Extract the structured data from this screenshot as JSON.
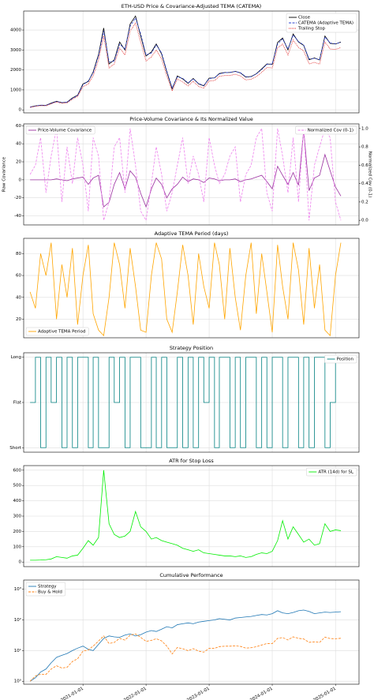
{
  "shared_x": {
    "x": [
      "2020-03-01",
      "2020-04-01",
      "2020-05-01",
      "2020-06-01",
      "2020-07-01",
      "2020-08-01",
      "2020-09-01",
      "2020-10-01",
      "2020-11-01",
      "2020-12-01",
      "2021-01-01",
      "2021-02-01",
      "2021-03-01",
      "2021-04-01",
      "2021-05-01",
      "2021-06-01",
      "2021-07-01",
      "2021-08-01",
      "2021-09-01",
      "2021-10-01",
      "2021-11-01",
      "2021-12-01",
      "2022-01-01",
      "2022-02-01",
      "2022-03-01",
      "2022-04-01",
      "2022-05-01",
      "2022-06-01",
      "2022-07-01",
      "2022-08-01",
      "2022-09-01",
      "2022-10-01",
      "2022-11-01",
      "2022-12-01",
      "2023-01-01",
      "2023-02-01",
      "2023-03-01",
      "2023-04-01",
      "2023-05-01",
      "2023-06-01",
      "2023-07-01",
      "2023-08-01",
      "2023-09-01",
      "2023-10-01",
      "2023-11-01",
      "2023-12-01",
      "2024-01-01",
      "2024-02-01",
      "2024-03-01",
      "2024-04-01",
      "2024-05-01",
      "2024-06-01",
      "2024-07-01",
      "2024-08-01",
      "2024-09-01",
      "2024-10-01",
      "2024-11-01",
      "2024-12-01",
      "2025-01-01",
      "2025-02-01"
    ],
    "xlim": [
      "2020-01-24",
      "2025-05-17"
    ],
    "xticks": [
      "2021-01-01",
      "2022-01-01",
      "2023-01-01",
      "2024-01-01",
      "2025-01-01"
    ]
  },
  "chart_data": [
    {
      "type": "line",
      "title": "ETH-USD Price & Covariance-Adjusted TEMA (CATEMA)",
      "ylim": [
        -150,
        4950
      ],
      "yticks": [
        0,
        1000,
        2000,
        3000,
        4000
      ],
      "grid": true,
      "legend": "upper right",
      "series": [
        {
          "name": "Close",
          "color": "#000000",
          "dash": "solid",
          "values": [
            135,
            200,
            230,
            225,
            340,
            430,
            360,
            385,
            600,
            735,
            1300,
            1420,
            1900,
            2770,
            4100,
            2300,
            2500,
            3400,
            3000,
            4300,
            4700,
            3700,
            2700,
            2900,
            3300,
            2800,
            1900,
            1050,
            1700,
            1550,
            1330,
            1570,
            1300,
            1200,
            1590,
            1600,
            1820,
            1870,
            1870,
            1930,
            1850,
            1640,
            1670,
            1810,
            2050,
            2300,
            2280,
            3380,
            3600,
            3000,
            3800,
            3400,
            3230,
            2510,
            2600,
            2500,
            3700,
            3330,
            3300,
            3400
          ]
        },
        {
          "name": "CATEMA (Adaptive TEMA)",
          "color": "#2a3fd0",
          "dash": "dashed",
          "values": [
            140,
            190,
            235,
            230,
            320,
            420,
            370,
            380,
            570,
            720,
            1250,
            1450,
            1850,
            2700,
            3950,
            2400,
            2450,
            3300,
            3050,
            4200,
            4600,
            3800,
            2750,
            2850,
            3250,
            2850,
            1950,
            1100,
            1650,
            1580,
            1350,
            1550,
            1320,
            1220,
            1560,
            1610,
            1800,
            1860,
            1880,
            1920,
            1860,
            1660,
            1660,
            1800,
            2020,
            2280,
            2300,
            3300,
            3550,
            3050,
            3750,
            3420,
            3250,
            2550,
            2580,
            2520,
            3650,
            3350,
            3310,
            3380
          ]
        },
        {
          "name": "Trailing Stop",
          "color": "#e02020",
          "dash": "dotted",
          "values": [
            120,
            175,
            210,
            205,
            300,
            390,
            330,
            350,
            530,
            670,
            1150,
            1300,
            1700,
            2500,
            3700,
            2100,
            2300,
            3100,
            2750,
            3950,
            4350,
            3400,
            2450,
            2650,
            3000,
            2550,
            1700,
            950,
            1550,
            1400,
            1200,
            1430,
            1180,
            1080,
            1450,
            1470,
            1680,
            1720,
            1720,
            1780,
            1700,
            1500,
            1530,
            1660,
            1880,
            2120,
            2100,
            3100,
            3300,
            2750,
            3500,
            3120,
            2960,
            2300,
            2380,
            2290,
            3400,
            3050,
            3030,
            3120
          ]
        }
      ]
    },
    {
      "type": "line",
      "title": "Price-Volume Covariance & Its Normalized Value",
      "ylabel": "Raw Covariance",
      "y2label": "Normalized Cov (0-1)",
      "ylim": [
        -50,
        62
      ],
      "yticks": [
        -40,
        -20,
        0,
        20,
        40,
        60
      ],
      "y2lim": [
        -0.05,
        1.05
      ],
      "y2ticks": [
        {
          "value": 0,
          "label": "0.0"
        },
        0.2,
        0.4,
        0.6,
        0.8,
        {
          "value": 1,
          "label": "1.0"
        }
      ],
      "grid": true,
      "series": [
        {
          "name": "Price-Volume Covariance",
          "color": "#9b30a0",
          "dash": "solid",
          "legend": "upper left",
          "values": [
            0,
            0,
            0,
            0,
            0,
            1,
            0,
            -1,
            1,
            2,
            3,
            -5,
            2,
            5,
            -30,
            -25,
            -5,
            8,
            -10,
            10,
            3,
            -15,
            -30,
            -10,
            2,
            -5,
            -20,
            -10,
            -5,
            3,
            -2,
            1,
            0,
            -3,
            2,
            1,
            -1,
            0,
            0,
            1,
            -2,
            0,
            1,
            3,
            5,
            -2,
            -10,
            15,
            5,
            -5,
            8,
            -6,
            55,
            -12,
            2,
            5,
            28,
            10,
            -8,
            -18
          ]
        },
        {
          "name": "Normalized Cov (0-1)",
          "color": "#ee82ee",
          "dash": "dashed",
          "axis": "y2",
          "legend": "upper right",
          "values": [
            0.5,
            0.6,
            0.9,
            0.3,
            0.7,
            1.0,
            0.2,
            0.8,
            0.4,
            0.9,
            0.6,
            0.1,
            0.9,
            0.7,
            0.0,
            0.2,
            0.8,
            0.9,
            0.3,
            1.0,
            0.6,
            0.1,
            0.0,
            0.4,
            0.8,
            0.5,
            0.1,
            0.3,
            0.6,
            0.9,
            0.4,
            0.7,
            0.5,
            0.2,
            0.9,
            0.6,
            0.4,
            0.5,
            0.7,
            0.8,
            0.2,
            0.5,
            0.6,
            0.9,
            1.0,
            0.3,
            0.1,
            1.0,
            0.7,
            0.3,
            0.9,
            0.2,
            1.0,
            0.0,
            0.6,
            0.8,
            1.0,
            0.9,
            0.2,
            0.0
          ]
        }
      ]
    },
    {
      "type": "line",
      "title": "Adaptive TEMA Period (days)",
      "ylim": [
        3,
        94
      ],
      "yticks": [
        20,
        40,
        60,
        80
      ],
      "grid": true,
      "legend": "lower left",
      "series": [
        {
          "name": "Adaptive TEMA Period",
          "color": "#ffa500",
          "dash": "solid",
          "values": [
            45,
            30,
            80,
            60,
            90,
            20,
            70,
            40,
            85,
            15,
            60,
            88,
            25,
            10,
            5,
            40,
            90,
            70,
            30,
            85,
            50,
            10,
            8,
            60,
            90,
            75,
            20,
            8,
            45,
            88,
            60,
            15,
            80,
            50,
            30,
            90,
            70,
            20,
            85,
            40,
            10,
            60,
            90,
            25,
            80,
            45,
            8,
            88,
            50,
            20,
            90,
            65,
            15,
            85,
            30,
            70,
            10,
            5,
            60,
            90
          ]
        }
      ]
    },
    {
      "type": "step",
      "title": "Strategy Position",
      "ylim": [
        -1.1,
        1.1
      ],
      "yticks": [
        {
          "value": -1,
          "label": "Short"
        },
        {
          "value": 0,
          "label": "Flat"
        },
        {
          "value": 1,
          "label": "Long"
        }
      ],
      "grid": true,
      "legend": "upper right",
      "series": [
        {
          "name": "Position",
          "color": "#008080",
          "dash": "solid",
          "values": [
            0,
            1,
            -1,
            1,
            0,
            1,
            -1,
            1,
            -1,
            1,
            1,
            -1,
            1,
            -1,
            -1,
            1,
            0,
            1,
            -1,
            1,
            1,
            -1,
            -1,
            1,
            -1,
            1,
            -1,
            -1,
            1,
            -1,
            1,
            -1,
            1,
            0,
            1,
            -1,
            1,
            1,
            -1,
            1,
            -1,
            1,
            1,
            -1,
            1,
            -1,
            1,
            1,
            -1,
            1,
            1,
            -1,
            1,
            -1,
            1,
            1,
            -1,
            0,
            1,
            1
          ]
        }
      ]
    },
    {
      "type": "line",
      "title": "ATR for Stop Loss",
      "ylim": [
        -30,
        630
      ],
      "yticks": [
        0,
        100,
        200,
        300,
        400,
        500,
        600
      ],
      "grid": true,
      "legend": "upper right",
      "series": [
        {
          "name": "ATR (14d) for SL",
          "color": "#00ee00",
          "dash": "solid",
          "values": [
            12,
            12,
            13,
            15,
            20,
            35,
            30,
            25,
            40,
            45,
            90,
            140,
            110,
            160,
            600,
            250,
            180,
            160,
            170,
            200,
            330,
            230,
            200,
            150,
            160,
            140,
            130,
            120,
            110,
            90,
            80,
            70,
            80,
            60,
            55,
            50,
            45,
            40,
            40,
            35,
            40,
            30,
            35,
            50,
            60,
            55,
            70,
            140,
            270,
            150,
            230,
            180,
            130,
            150,
            110,
            120,
            250,
            200,
            210,
            205
          ]
        }
      ]
    },
    {
      "type": "line",
      "title": "Cumulative Performance",
      "log_y": true,
      "ylim": [
        0.8,
        2000
      ],
      "yticks": [
        {
          "value": 1,
          "label": "10⁰"
        },
        {
          "value": 10,
          "label": "10¹"
        },
        {
          "value": 100,
          "label": "10²"
        },
        {
          "value": 1000,
          "label": "10³"
        }
      ],
      "grid": true,
      "legend": "upper left",
      "series": [
        {
          "name": "Strategy",
          "color": "#1f77b4",
          "dash": "solid",
          "values": [
            1,
            1.3,
            2,
            2.5,
            4,
            6,
            7,
            8,
            10,
            12,
            14,
            11,
            10,
            16,
            25,
            30,
            28,
            27,
            32,
            35,
            30,
            33,
            40,
            45,
            42,
            50,
            60,
            55,
            70,
            75,
            80,
            75,
            85,
            90,
            95,
            100,
            110,
            105,
            100,
            115,
            120,
            125,
            130,
            140,
            150,
            145,
            160,
            200,
            170,
            160,
            175,
            200,
            210,
            190,
            160,
            170,
            180,
            175,
            180,
            185
          ]
        },
        {
          "name": "Buy & Hold",
          "color": "#ff7f0e",
          "dash": "dashed",
          "values": [
            1,
            1.48,
            1.7,
            1.67,
            2.5,
            3.2,
            2.7,
            2.85,
            4.4,
            5.4,
            9.6,
            10.5,
            14,
            20.5,
            30,
            17,
            18.5,
            25,
            22,
            32,
            35,
            27,
            20,
            21.5,
            24.4,
            20.7,
            14,
            7.8,
            12.6,
            11.5,
            9.9,
            11.6,
            9.6,
            8.9,
            11.8,
            11.9,
            13.5,
            13.9,
            13.9,
            14.3,
            13.7,
            12.1,
            12.4,
            13.4,
            15.2,
            17,
            16.9,
            25,
            26.7,
            22.2,
            28.1,
            25.2,
            23.9,
            18.6,
            19.3,
            18.5,
            27.4,
            24.7,
            24.4,
            25.2
          ]
        }
      ]
    }
  ]
}
